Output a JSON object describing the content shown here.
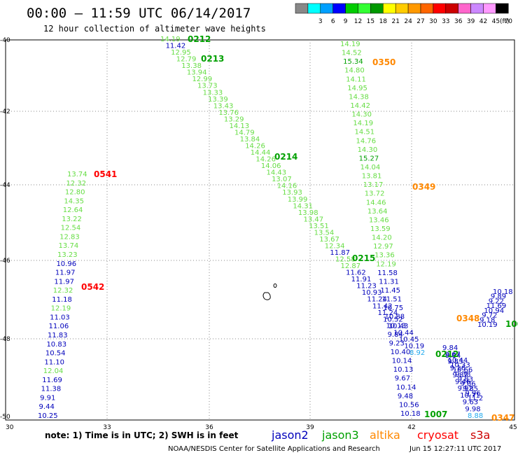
{
  "header": {
    "title": "00:00 – 11:59 UTC 06/14/2017",
    "subtitle": "12 hour collection of altimeter wave heights"
  },
  "colors": {
    "jason2": "#0000bb",
    "jason3": "#00a000",
    "jason3_light": "#66dd44",
    "altika": "#ff8800",
    "cryosat": "#ff0000",
    "s3a": "#cc0000",
    "s3a_light": "#22aaee"
  },
  "scale": {
    "unit": "(ft)",
    "bins": [
      {
        "label": "",
        "color": "#888888"
      },
      {
        "label": "3",
        "color": "#00ffff"
      },
      {
        "label": "6",
        "color": "#00a0ff"
      },
      {
        "label": "9",
        "color": "#0000ff"
      },
      {
        "label": "12",
        "color": "#00cc00"
      },
      {
        "label": "15",
        "color": "#33ff33"
      },
      {
        "label": "18",
        "color": "#009900"
      },
      {
        "label": "21",
        "color": "#ffff00"
      },
      {
        "label": "24",
        "color": "#ffcc00"
      },
      {
        "label": "27",
        "color": "#ff9900"
      },
      {
        "label": "30",
        "color": "#ff6600"
      },
      {
        "label": "33",
        "color": "#ff0000"
      },
      {
        "label": "36",
        "color": "#cc0000"
      },
      {
        "label": "39",
        "color": "#ff66cc"
      },
      {
        "label": "42",
        "color": "#cc88ff"
      },
      {
        "label": "45",
        "color": "#ff99ff"
      },
      {
        "label": "70",
        "color": "#000000"
      }
    ]
  },
  "map": {
    "lon_ticks": [
      "30",
      "33",
      "36",
      "39",
      "42",
      "45"
    ],
    "lat_ticks": [
      "-40",
      "-42",
      "-44",
      "-46",
      "-48",
      "-50"
    ]
  },
  "passes": [
    {
      "label": "0212",
      "color": "jason3"
    },
    {
      "label": "0213",
      "color": "jason3"
    },
    {
      "label": "0214",
      "color": "jason3"
    },
    {
      "label": "0215",
      "color": "jason3"
    },
    {
      "label": "0212",
      "color": "jason3"
    },
    {
      "label": "1007",
      "color": "jason3"
    },
    {
      "label": "100",
      "color": "jason3"
    },
    {
      "label": "0541",
      "color": "cryosat"
    },
    {
      "label": "0542",
      "color": "cryosat"
    },
    {
      "label": "0350",
      "color": "altika"
    },
    {
      "label": "0349",
      "color": "altika"
    },
    {
      "label": "0348",
      "color": "altika"
    },
    {
      "label": "0347",
      "color": "altika"
    }
  ],
  "tracks": {
    "track_a": {
      "values": [
        "14.19",
        "11.42",
        "12.95",
        "12.79",
        "13.38",
        "13.94",
        "12.99",
        "13.73",
        "13.33",
        "13.39",
        "13.43",
        "13.76",
        "13.29",
        "14.13",
        "14.79",
        "13.84",
        "14.26",
        "14.44",
        "14.26",
        "14.06",
        "14.43",
        "13.07",
        "14.16",
        "13.93",
        "13.99",
        "14.31",
        "13.98",
        "13.47",
        "13.51",
        "13.54",
        "13.67",
        "12.34",
        "11.87",
        "12.58",
        "12.87",
        "11.62",
        "11.91",
        "11.23",
        "10.93",
        "11.24",
        "11.42",
        "11.24",
        "10.52",
        "10.43",
        "10.44",
        "10.45",
        "10.19",
        "8.92"
      ],
      "colors": "L N L L L L L L L L L L L L L L L L L L L L L L L L L L L L L L N L L N N N N N N N N N N N N S"
    },
    "track_b": {
      "values": [
        "14.19",
        "14.52",
        "15.34",
        "14.80",
        "14.11",
        "14.95",
        "14.38",
        "14.42",
        "14.30",
        "14.19",
        "14.51",
        "14.76",
        "14.30",
        "15.27",
        "14.04",
        "13.81",
        "13.17",
        "13.72",
        "14.46",
        "13.64",
        "13.46",
        "13.59",
        "14.20",
        "12.97",
        "13.36",
        "12.19",
        "11.58",
        "11.31",
        "11.45",
        "11.51",
        "10.75",
        "10.88",
        "10.13",
        "9.84",
        "9.23",
        "10.40",
        "10.14",
        "10.13",
        "9.67",
        "10.14",
        "9.48",
        "10.56",
        "10.18"
      ],
      "colors": "L L G L L L L L L L L L L G L L L L L L L L L L L L N N N N N N N N N N N N N N N N N"
    },
    "track_c": {
      "values": [
        "13.74",
        "12.32",
        "12.80",
        "14.35",
        "12.64",
        "13.22",
        "12.54",
        "12.83",
        "13.74",
        "13.23",
        "10.96",
        "11.97",
        "11.97",
        "12.32",
        "11.18",
        "12.19",
        "11.03",
        "11.06",
        "11.83",
        "10.83",
        "10.54",
        "11.10",
        "12.04",
        "11.69",
        "11.38",
        "9.91",
        "9.44",
        "10.25"
      ],
      "colors": "L L L L L L L L L L N N N L N L N N N N N N L N N N N N"
    },
    "track_d": {
      "values": [
        "9.84",
        "9.67",
        "9.83",
        "9.16",
        "9.87",
        "9.46",
        "9.92",
        "10.71",
        "9.63",
        "9.98",
        "8.88"
      ],
      "colors": "N N N N N N N N N N S"
    },
    "track_e": {
      "values": [
        "10.19",
        "9.18",
        "9.72",
        "10.94",
        "11.69",
        "9.22",
        "9.89",
        "10.18"
      ],
      "colors": "N N N N N N N N"
    },
    "scatter": {
      "values": [
        "9.84",
        "10.44",
        "10.33",
        "10.66",
        "9.38",
        "9.83",
        "9.06",
        "9.85",
        "9.96",
        "11.2"
      ],
      "colors": "N N N N N N N N N N"
    }
  },
  "footer": {
    "note": "note: 1) Time is in UTC; 2) SWH is in feet",
    "satellites": [
      {
        "name": "jason2",
        "color": "jason2"
      },
      {
        "name": "jason3",
        "color": "jason3"
      },
      {
        "name": "altika",
        "color": "altika"
      },
      {
        "name": "cryosat",
        "color": "cryosat"
      },
      {
        "name": "s3a",
        "color": "s3a"
      }
    ],
    "credit": "NOAA/NESDIS Center for Satellite Applications and Research",
    "timestamp": "Jun 15 12:27:11 UTC 2017"
  }
}
